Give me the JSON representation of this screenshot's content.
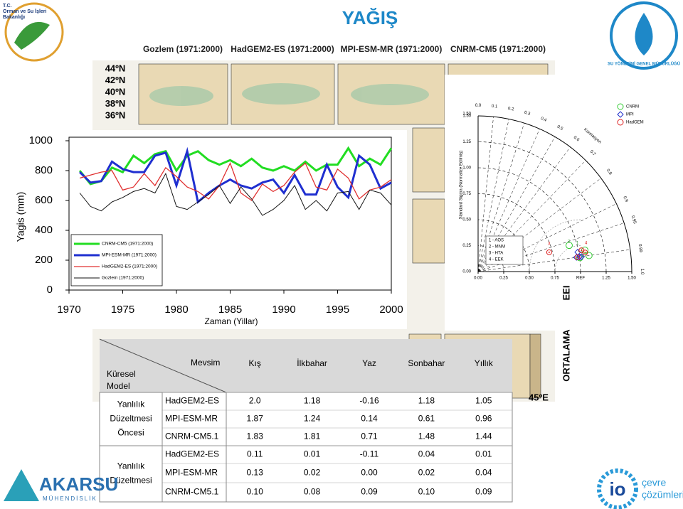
{
  "header": {
    "title": "YAĞIŞ",
    "ministry": [
      "T.C.",
      "Orman ve Su İşleri",
      "Bakanlığı"
    ],
    "right_logo": "SU YÖNETİMİ GENEL MÜDÜRLÜĞÜ"
  },
  "maps": {
    "panels": [
      "Gozlem (1971:2000)",
      "HadGEM2-ES (1971:2000)",
      "MPI-ESM-MR (1971:2000)",
      "CNRM-CM5 (1971:2000)"
    ],
    "lat_labels": [
      "44ºN",
      "42ºN",
      "40ºN",
      "38ºN",
      "36ºN"
    ],
    "lon_label": "45ºE",
    "side_labels": [
      "EEI",
      "ORTALAMA"
    ]
  },
  "chart_data": [
    {
      "type": "line",
      "ylabel": "Yagis (mm)",
      "xlabel": "Zaman (Yillar)",
      "x": [
        1971,
        1972,
        1973,
        1974,
        1975,
        1976,
        1977,
        1978,
        1979,
        1980,
        1981,
        1982,
        1983,
        1984,
        1985,
        1986,
        1987,
        1988,
        1989,
        1990,
        1991,
        1992,
        1993,
        1994,
        1995,
        1996,
        1997,
        1998,
        1999,
        2000
      ],
      "xlim": [
        1970,
        2000
      ],
      "xticks": [
        1970,
        1975,
        1980,
        1985,
        1990,
        1995,
        2000
      ],
      "ylim": [
        0,
        1000
      ],
      "yticks": [
        0,
        200,
        400,
        600,
        800,
        1000
      ],
      "series": [
        {
          "name": "CNRM-CM5 (1971:2000)",
          "color": "#22dd22",
          "width": 3,
          "values": [
            800,
            710,
            730,
            820,
            790,
            900,
            850,
            910,
            930,
            800,
            900,
            930,
            870,
            840,
            870,
            830,
            880,
            820,
            800,
            830,
            800,
            860,
            800,
            840,
            840,
            950,
            830,
            880,
            840,
            950
          ]
        },
        {
          "name": "MPI-ESM-MR (1971:2000)",
          "color": "#1f2fd0",
          "width": 3,
          "values": [
            790,
            720,
            730,
            860,
            810,
            790,
            790,
            900,
            920,
            700,
            930,
            590,
            650,
            700,
            740,
            700,
            680,
            720,
            740,
            650,
            770,
            640,
            640,
            840,
            690,
            620,
            900,
            840,
            680,
            720
          ]
        },
        {
          "name": "HadGEM2-ES (1971:2000)",
          "color": "#e03030",
          "width": 1.3,
          "values": [
            750,
            770,
            790,
            800,
            670,
            690,
            780,
            700,
            820,
            760,
            690,
            660,
            610,
            700,
            850,
            650,
            600,
            710,
            660,
            700,
            790,
            850,
            690,
            670,
            810,
            750,
            610,
            670,
            690,
            740
          ]
        },
        {
          "name": "Gozlem (1971:2000)",
          "color": "#111111",
          "width": 1,
          "values": [
            650,
            560,
            530,
            590,
            620,
            660,
            680,
            650,
            780,
            560,
            540,
            590,
            640,
            700,
            580,
            690,
            610,
            500,
            540,
            600,
            700,
            540,
            600,
            530,
            650,
            660,
            540,
            670,
            650,
            570
          ]
        }
      ]
    },
    {
      "type": "taylor",
      "ylabel": "Standard Sigma (Normalize Edilmiş)",
      "corr_label": "Korelasyon",
      "sigma_ticks": [
        {
          "value": 0,
          "label": "0.00"
        },
        {
          "value": 0.25,
          "label": "0.25"
        },
        {
          "value": 0.5,
          "label": "0.50"
        },
        {
          "value": 0.75,
          "label": "0.75"
        },
        {
          "value": 1,
          "label": "1.00"
        },
        {
          "value": 1.25,
          "label": "1.25"
        },
        {
          "value": 1.5,
          "label": "1.50"
        }
      ],
      "x_ticks": [
        {
          "value": 0,
          "label": "0.00"
        },
        {
          "value": 0.25,
          "label": "0.25"
        },
        {
          "value": 0.5,
          "label": "0.50"
        },
        {
          "value": 0.75,
          "label": "0.75"
        },
        {
          "value": 1,
          "label": "REF"
        },
        {
          "value": 1.25,
          "label": "1.25"
        },
        {
          "value": 1.5,
          "label": "1.50"
        }
      ],
      "corr_ticks": [
        {
          "value": 0,
          "label": "0.0"
        },
        {
          "value": 0.1,
          "label": "0.1"
        },
        {
          "value": 0.2,
          "label": "0.2"
        },
        {
          "value": 0.3,
          "label": "0.3"
        },
        {
          "value": 0.4,
          "label": "0.4"
        },
        {
          "value": 0.5,
          "label": "0.5"
        },
        {
          "value": 0.6,
          "label": "0.6"
        },
        {
          "value": 0.7,
          "label": "0.7"
        },
        {
          "value": 0.8,
          "label": "0.8"
        },
        {
          "value": 0.9,
          "label": "0.9"
        },
        {
          "value": 0.95,
          "label": "0.95"
        },
        {
          "value": 0.99,
          "label": "0.99"
        },
        {
          "value": 1,
          "label": "1.0"
        }
      ],
      "point_labels": [
        "3",
        "1",
        "4",
        "2"
      ],
      "notes": [
        "1 - AOS",
        "2 - MNM",
        "3 - HTA",
        "4 - EEK"
      ],
      "series": [
        {
          "name": "CNRM",
          "color": "#33cc33",
          "marker": "circle",
          "std": [
            1.002,
            0.924,
            1.093,
            1.062
          ],
          "corr": [
            0.991,
            0.962,
            0.99,
            0.981
          ]
        },
        {
          "name": "MPI",
          "color": "#2233cc",
          "marker": "diamond",
          "std": [
            0.99,
            1.0,
            1.02,
            0.97
          ],
          "corr": [
            0.982,
            0.99,
            0.99,
            0.99
          ]
        },
        {
          "name": "HadGEM",
          "color": "#dd2222",
          "marker": "dot",
          "std": [
            0.98,
            1.03,
            0.718,
            1.06
          ],
          "corr": [
            0.99,
            0.98,
            0.966,
            0.985
          ]
        }
      ]
    }
  ],
  "table": {
    "corner_top": "Mevsim",
    "corner_bottom": [
      "Küresel",
      "Model"
    ],
    "columns": [
      "Kış",
      "İlkbahar",
      "Yaz",
      "Sonbahar",
      "Yıllık"
    ],
    "groups": [
      {
        "label": [
          "Yanlılık",
          "Düzeltmesi",
          "Öncesi"
        ],
        "rows": [
          [
            "HadGEM2-ES",
            "2.0",
            "1.18",
            "-0.16",
            "1.18",
            "1.05"
          ],
          [
            "MPI-ESM-MR",
            "1.87",
            "1.24",
            "0.14",
            "0.61",
            "0.96"
          ],
          [
            "CNRM-CM5.1",
            "1.83",
            "1.81",
            "0.71",
            "1.48",
            "1.44"
          ]
        ]
      },
      {
        "label": [
          "Yanlılık",
          "Düzeltmesi"
        ],
        "rows": [
          [
            "HadGEM2-ES",
            "0.11",
            "0.01",
            "-0.11",
            "0.04",
            "0.01"
          ],
          [
            "MPI-ESM-MR",
            "0.13",
            "0.02",
            "0.00",
            "0.02",
            "0.04"
          ],
          [
            "CNRM-CM5.1",
            "0.10",
            "0.08",
            "0.09",
            "0.10",
            "0.09"
          ]
        ]
      }
    ]
  },
  "footer": {
    "left_logo": [
      "AKARSU",
      "MÜHENDİSLİK"
    ],
    "right_logo": [
      "çevre",
      "çözümleri"
    ]
  }
}
